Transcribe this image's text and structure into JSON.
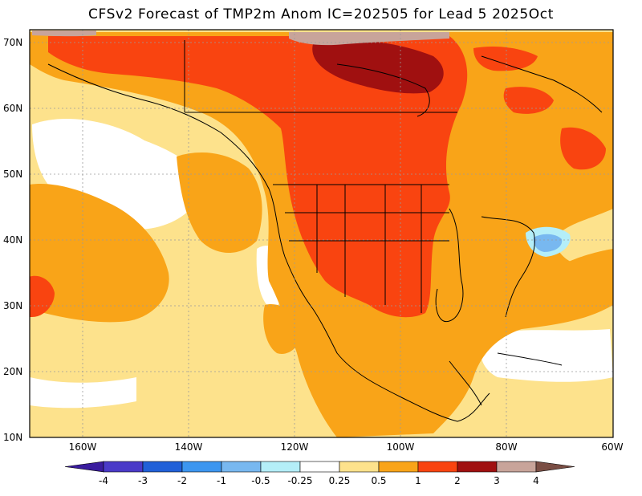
{
  "title": "CFSv2 Forecast of TMP2m Anom IC=202505 for Lead 5 2025Oct",
  "lat_labels": [
    "70N",
    "60N",
    "50N",
    "40N",
    "30N",
    "20N",
    "10N"
  ],
  "lon_labels": [
    "160W",
    "140W",
    "120W",
    "100W",
    "80W",
    "60W"
  ],
  "colorbar": {
    "labels": [
      "-4",
      "-3",
      "-2",
      "-1",
      "-0.5",
      "-0.25",
      "0.25",
      "0.5",
      "1",
      "2",
      "3",
      "4"
    ],
    "colors": [
      "#3a1c9e",
      "#4a3ac8",
      "#2060d8",
      "#3c96f0",
      "#78b8f0",
      "#b4eef8",
      "#ffffff",
      "#fde28c",
      "#f9a418",
      "#f94410",
      "#a01010",
      "#c8a49a",
      "#7a4e44"
    ]
  },
  "legend_colors": {
    "0.25_0.5": "#fde28c",
    "0.5_1": "#f9a418",
    "1_2": "#f94410",
    "2_3": "#a01010",
    "3_4": "#c8a49a",
    "4_plus": "#7a4e44",
    "neg_0.5_neg_1": "#78b8f0",
    "neg_0.25_neg_0.5": "#b4eef8"
  }
}
